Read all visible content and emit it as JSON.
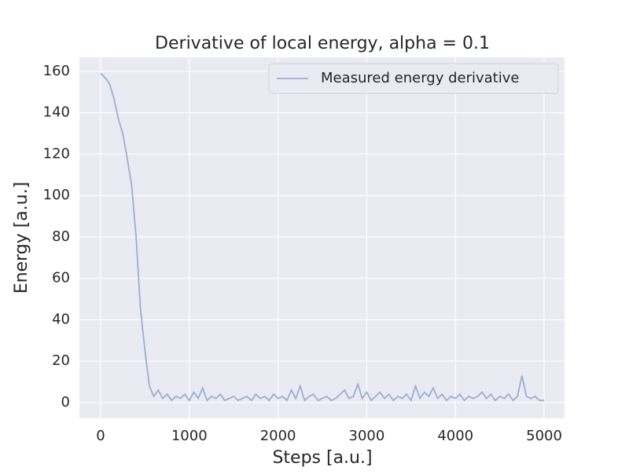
{
  "chart_data": {
    "type": "line",
    "title": "Derivative of local energy, alpha = 0.1",
    "xlabel": "Steps [a.u.]",
    "ylabel": "Energy [a.u.]",
    "x": [
      0,
      50,
      100,
      150,
      200,
      250,
      300,
      350,
      400,
      450,
      500,
      550,
      600,
      650,
      700,
      750,
      800,
      850,
      900,
      950,
      1000,
      1050,
      1100,
      1150,
      1200,
      1250,
      1300,
      1350,
      1400,
      1450,
      1500,
      1550,
      1600,
      1650,
      1700,
      1750,
      1800,
      1850,
      1900,
      1950,
      2000,
      2050,
      2100,
      2150,
      2200,
      2250,
      2300,
      2350,
      2400,
      2450,
      2500,
      2550,
      2600,
      2650,
      2700,
      2750,
      2800,
      2850,
      2900,
      2950,
      3000,
      3050,
      3100,
      3150,
      3200,
      3250,
      3300,
      3350,
      3400,
      3450,
      3500,
      3550,
      3600,
      3650,
      3700,
      3750,
      3800,
      3850,
      3900,
      3950,
      4000,
      4050,
      4100,
      4150,
      4200,
      4250,
      4300,
      4350,
      4400,
      4450,
      4500,
      4550,
      4600,
      4650,
      4700,
      4750,
      4800,
      4850,
      4900,
      4950,
      5000
    ],
    "series": [
      {
        "name": "Measured energy derivative",
        "color": "#9cadd4",
        "values": [
          159,
          157,
          154,
          147,
          137,
          130,
          118,
          105,
          80,
          45,
          25,
          8,
          3,
          6,
          2,
          4,
          1,
          3,
          2,
          4,
          1,
          5,
          2,
          7,
          1,
          3,
          2,
          4,
          1,
          2,
          3,
          1,
          2,
          3,
          1,
          4,
          2,
          3,
          1,
          4,
          2,
          3,
          1,
          6,
          2,
          8,
          1,
          3,
          4,
          1,
          2,
          3,
          1,
          2,
          4,
          6,
          2,
          3,
          9,
          2,
          5,
          1,
          3,
          5,
          2,
          4,
          1,
          3,
          2,
          4,
          1,
          8,
          2,
          5,
          3,
          7,
          2,
          4,
          1,
          3,
          2,
          4,
          1,
          3,
          2,
          3,
          5,
          2,
          4,
          1,
          3,
          2,
          4,
          1,
          3,
          13,
          3,
          2,
          3,
          1,
          1
        ]
      }
    ],
    "xlim": [
      -239,
      5230
    ],
    "ylim": [
      -7.6,
      166.8
    ],
    "xticks": [
      0,
      1000,
      2000,
      3000,
      4000,
      5000
    ],
    "yticks": [
      0,
      20,
      40,
      60,
      80,
      100,
      120,
      140,
      160
    ],
    "grid": true,
    "legend": "upper right"
  }
}
